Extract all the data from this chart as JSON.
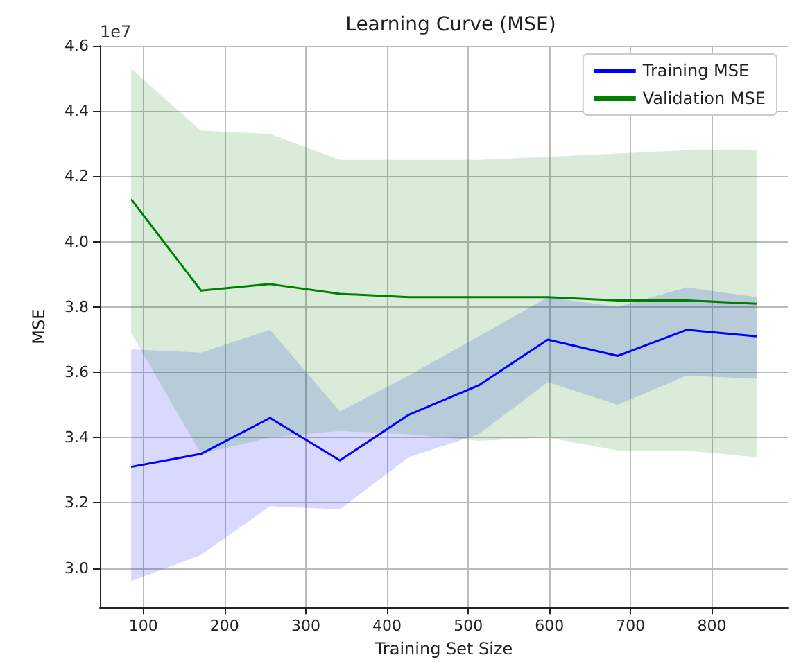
{
  "chart_data": {
    "type": "line",
    "title": "Learning Curve (MSE)",
    "xlabel": "Training Set Size",
    "ylabel": "MSE",
    "annotations": [
      "1e7"
    ],
    "x": [
      85,
      171,
      256,
      342,
      427,
      513,
      598,
      684,
      769,
      855
    ],
    "series": [
      {
        "name": "Training MSE",
        "color": "#0000ff",
        "values": [
          3.31,
          3.35,
          3.46,
          3.33,
          3.47,
          3.56,
          3.7,
          3.65,
          3.73,
          3.71
        ],
        "lower": [
          2.96,
          3.04,
          3.19,
          3.18,
          3.34,
          3.41,
          3.57,
          3.5,
          3.59,
          3.58
        ],
        "upper": [
          3.67,
          3.66,
          3.73,
          3.48,
          3.59,
          3.71,
          3.83,
          3.8,
          3.86,
          3.83
        ]
      },
      {
        "name": "Validation MSE",
        "color": "#008000",
        "values": [
          4.13,
          3.85,
          3.87,
          3.84,
          3.83,
          3.83,
          3.83,
          3.82,
          3.82,
          3.81
        ],
        "lower": [
          3.72,
          3.35,
          3.4,
          3.42,
          3.41,
          3.39,
          3.4,
          3.36,
          3.36,
          3.34
        ],
        "upper": [
          4.53,
          4.34,
          4.33,
          4.25,
          4.25,
          4.25,
          4.26,
          4.27,
          4.28,
          4.28
        ]
      }
    ],
    "xlim": [
      46.5,
      893.5
    ],
    "xticks": [
      100,
      200,
      300,
      400,
      500,
      600,
      700,
      800
    ],
    "ylim": [
      2.88,
      4.6
    ],
    "yticks": [
      {
        "value": 3,
        "label": "3.0"
      },
      3.2,
      3.4,
      3.6,
      3.8,
      {
        "value": 4,
        "label": "4.0"
      },
      4.2,
      4.4,
      4.6
    ],
    "grid": true,
    "legend": "top right",
    "marker": "none",
    "line_style": "solid"
  }
}
